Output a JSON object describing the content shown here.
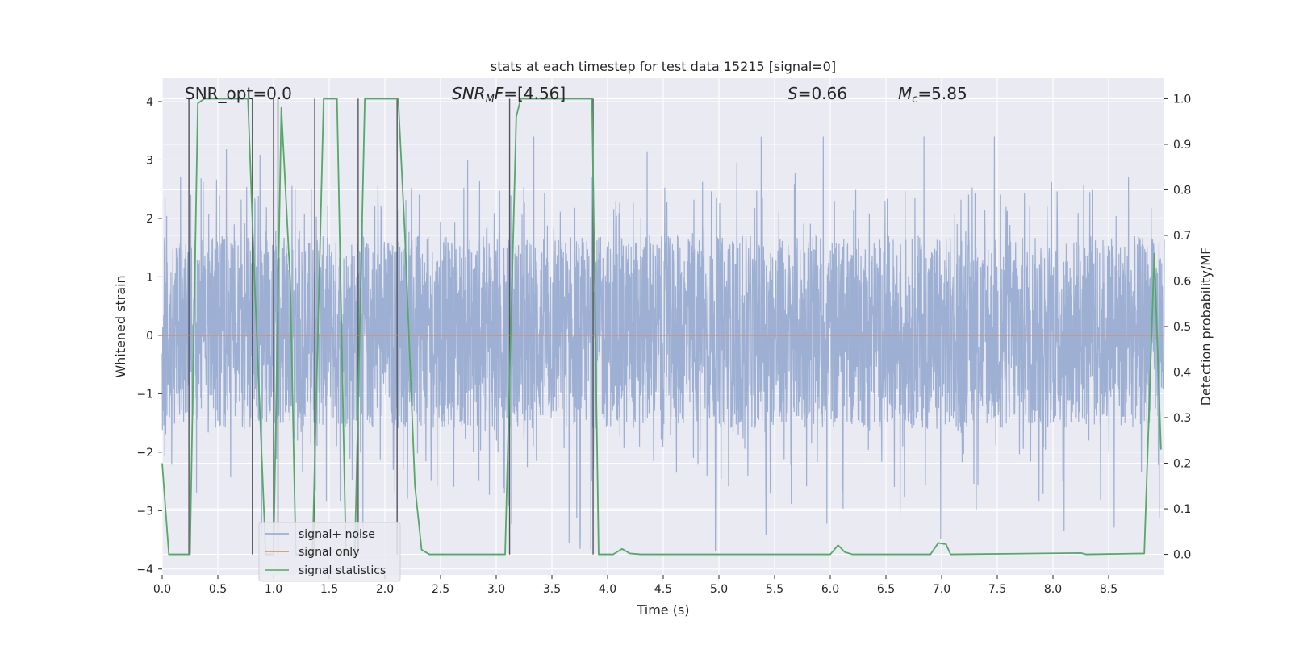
{
  "chart_data": {
    "type": "line",
    "title": "stats at each timestep for test data 15215 [signal=0]",
    "xlabel": "Time (s)",
    "ylabel_left": "Whitened strain",
    "ylabel_right": "Detection probability/MF",
    "xlim": [
      0.0,
      9.0
    ],
    "ylim_left": [
      -4.1,
      4.4
    ],
    "ylim_right": [
      -0.045,
      1.045
    ],
    "x_ticks": [
      "0.0",
      "0.5",
      "1.0",
      "1.5",
      "2.0",
      "2.5",
      "3.0",
      "3.5",
      "4.0",
      "4.5",
      "5.0",
      "5.5",
      "6.0",
      "6.5",
      "7.0",
      "7.5",
      "8.0",
      "8.5"
    ],
    "y_left_ticks": [
      "4",
      "3",
      "2",
      "1",
      "0",
      "−1",
      "−2",
      "−3",
      "−4"
    ],
    "y_right_ticks": [
      "1.0",
      "0.9",
      "0.8",
      "0.7",
      "0.6",
      "0.5",
      "0.4",
      "0.3",
      "0.2",
      "0.1",
      "0.0"
    ],
    "annotations": {
      "snr_opt": "SNR_opt=0.0",
      "snr_mf_name": "SNR",
      "snr_mf_sub": "M",
      "snr_mf_tail": "F",
      "snr_mf_value": "=[4.56]",
      "s_name": "S",
      "s_value": "=0.66",
      "mc_name": "M",
      "mc_sub": "c",
      "mc_value": "=5.85"
    },
    "legend": {
      "position": "lower-left",
      "entries": [
        "signal+ noise",
        "signal only",
        "signal statistics"
      ]
    },
    "noise_envelope": {
      "typical_band": [
        -1.6,
        1.7
      ],
      "peak_range": [
        -3.7,
        3.4
      ]
    },
    "series": [
      {
        "name": "signal only",
        "axis": "left",
        "points": [
          [
            0.0,
            0.0
          ],
          [
            9.0,
            0.0
          ]
        ]
      },
      {
        "name": "signal statistics",
        "axis": "right",
        "points": [
          [
            0.0,
            0.2
          ],
          [
            0.06,
            0.0
          ],
          [
            0.25,
            0.0
          ],
          [
            0.32,
            0.99
          ],
          [
            0.38,
            1.0
          ],
          [
            0.77,
            1.0
          ],
          [
            0.83,
            0.6
          ],
          [
            0.93,
            0.0
          ],
          [
            1.0,
            0.0
          ],
          [
            1.07,
            0.98
          ],
          [
            1.15,
            0.6
          ],
          [
            1.2,
            0.0
          ],
          [
            1.35,
            0.0
          ],
          [
            1.45,
            1.0
          ],
          [
            1.57,
            1.0
          ],
          [
            1.65,
            0.0
          ],
          [
            1.73,
            0.0
          ],
          [
            1.82,
            1.0
          ],
          [
            2.12,
            1.0
          ],
          [
            2.18,
            0.7
          ],
          [
            2.27,
            0.15
          ],
          [
            2.33,
            0.01
          ],
          [
            2.4,
            0.0
          ],
          [
            3.08,
            0.0
          ],
          [
            3.18,
            0.96
          ],
          [
            3.22,
            1.0
          ],
          [
            3.86,
            1.0
          ],
          [
            3.92,
            0.0
          ],
          [
            4.05,
            0.0
          ],
          [
            4.13,
            0.012
          ],
          [
            4.2,
            0.002
          ],
          [
            4.3,
            0.0
          ],
          [
            6.0,
            0.0
          ],
          [
            6.07,
            0.02
          ],
          [
            6.13,
            0.005
          ],
          [
            6.2,
            0.0
          ],
          [
            6.9,
            0.0
          ],
          [
            6.97,
            0.025
          ],
          [
            7.04,
            0.022
          ],
          [
            7.08,
            0.0
          ],
          [
            8.25,
            0.003
          ],
          [
            8.3,
            0.0
          ],
          [
            8.82,
            0.002
          ],
          [
            8.91,
            0.66
          ],
          [
            8.97,
            0.23
          ]
        ]
      },
      {
        "name": "event markers",
        "axis": "left",
        "x_positions": [
          0.24,
          0.81,
          1.0,
          1.04,
          1.37,
          1.76,
          2.11,
          3.12,
          3.87
        ]
      }
    ]
  },
  "colors": {
    "plot_bg": "#EAEAF2",
    "grid": "#FFFFFF",
    "noise": "#8FA4CC",
    "signal_only": "#DD8452",
    "statistics": "#55A868",
    "markers": "#55555E",
    "text": "#262626"
  }
}
